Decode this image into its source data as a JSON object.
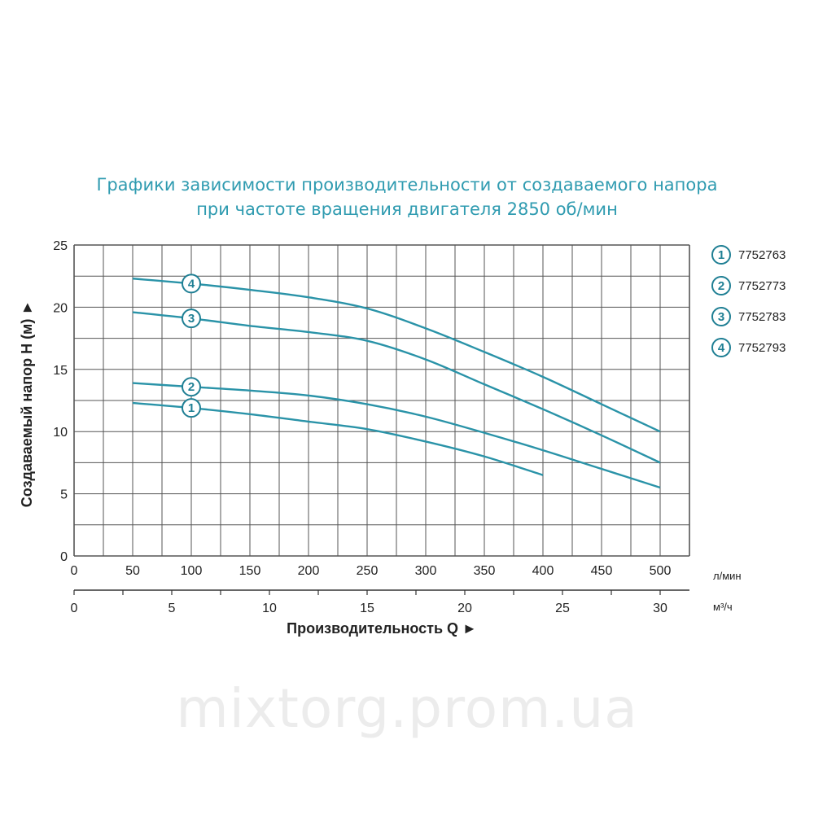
{
  "chart_data": {
    "type": "line",
    "title_line1": "Графики зависимости производительности от создаваемого напора",
    "title_line2": "при частоте вращения двигателя 2850 об/мин",
    "ylabel": "Создаваемый напор H (м) ►",
    "xlabel": "Производительность Q ►",
    "x_unit_primary": "л/мин",
    "x_unit_secondary": "м³/ч",
    "xlim": [
      0,
      525
    ],
    "ylim": [
      0,
      25
    ],
    "x_ticks_primary": [
      0,
      50,
      100,
      150,
      200,
      250,
      300,
      350,
      400,
      450,
      500
    ],
    "x_ticks_secondary": [
      0,
      5,
      10,
      15,
      20,
      25,
      30
    ],
    "y_ticks": [
      0,
      5,
      10,
      15,
      20,
      25
    ],
    "grid": true,
    "legend_position": "right",
    "line_color": "#2a93a8",
    "series": [
      {
        "name": "7752763",
        "badge": "1",
        "label_x": 100,
        "x": [
          50,
          100,
          150,
          200,
          250,
          300,
          350,
          400
        ],
        "y": [
          12.3,
          11.9,
          11.4,
          10.8,
          10.2,
          9.2,
          8.0,
          6.5
        ]
      },
      {
        "name": "7752773",
        "badge": "2",
        "label_x": 100,
        "x": [
          50,
          100,
          150,
          200,
          250,
          300,
          350,
          400,
          450,
          500
        ],
        "y": [
          13.9,
          13.6,
          13.3,
          12.9,
          12.2,
          11.2,
          9.9,
          8.5,
          7.0,
          5.5
        ]
      },
      {
        "name": "7752783",
        "badge": "3",
        "label_x": 100,
        "x": [
          50,
          100,
          150,
          200,
          250,
          300,
          350,
          400,
          450,
          500
        ],
        "y": [
          19.6,
          19.1,
          18.5,
          18.0,
          17.3,
          15.8,
          13.8,
          11.8,
          9.7,
          7.5
        ]
      },
      {
        "name": "7752793",
        "badge": "4",
        "label_x": 100,
        "x": [
          50,
          100,
          150,
          200,
          250,
          300,
          350,
          400,
          450,
          500
        ],
        "y": [
          22.3,
          21.9,
          21.4,
          20.8,
          19.9,
          18.3,
          16.4,
          14.4,
          12.2,
          10.0
        ]
      }
    ]
  },
  "watermark": "mixtorg.prom.ua"
}
